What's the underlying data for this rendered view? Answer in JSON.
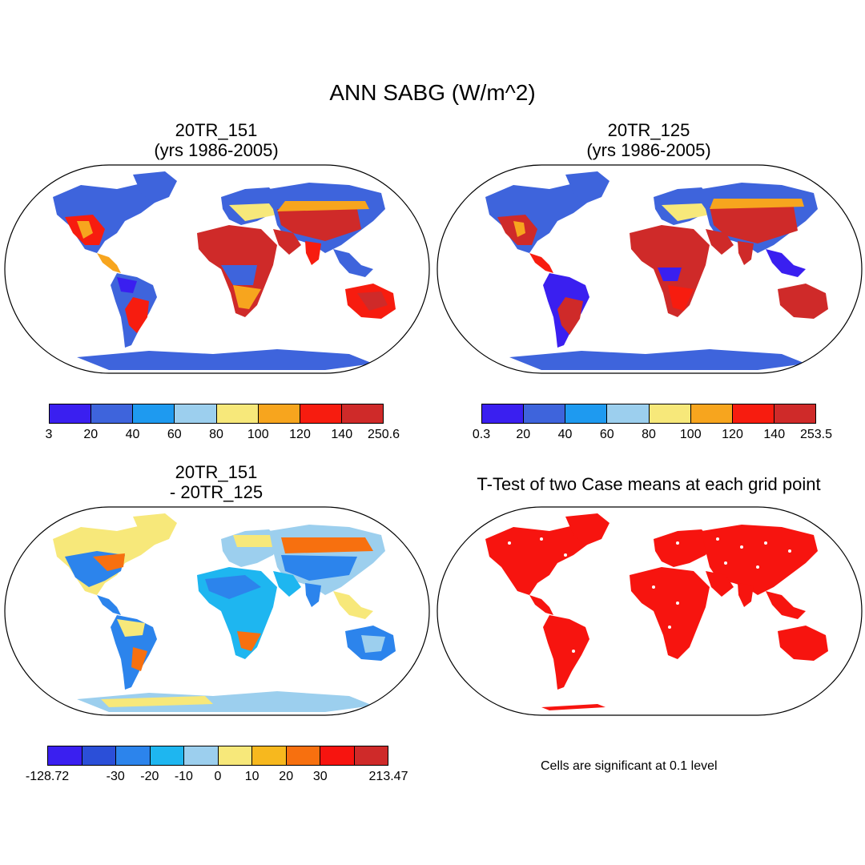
{
  "title": "ANN SABG (W/m^2)",
  "panels": {
    "top_left": {
      "title_line1": "20TR_151",
      "title_line2": "(yrs 1986-2005)",
      "colors": [
        "#3a1ff0",
        "#3e64dc",
        "#1e9af0",
        "#9ccfee",
        "#f7e87a",
        "#f7a51e",
        "#f71c0f",
        "#cf2a29"
      ],
      "ticks": [
        "3",
        "20",
        "40",
        "60",
        "80",
        "100",
        "120",
        "140",
        "250.6"
      ]
    },
    "top_right": {
      "title_line1": "20TR_125",
      "title_line2": "(yrs 1986-2005)",
      "colors": [
        "#3a1ff0",
        "#3e64dc",
        "#1e9af0",
        "#9ccfee",
        "#f7e87a",
        "#f7a51e",
        "#f71c0f",
        "#cf2a29"
      ],
      "ticks": [
        "0.3",
        "20",
        "40",
        "60",
        "80",
        "100",
        "120",
        "140",
        "253.5"
      ]
    },
    "bottom_left": {
      "title_line1": "20TR_151",
      "title_line2": "- 20TR_125",
      "colors": [
        "#3a1ff0",
        "#2b4fd8",
        "#2c84ec",
        "#1eb6f0",
        "#9ccfee",
        "#f7e87a",
        "#f7b81e",
        "#f7700f",
        "#f7140f",
        "#cf2a29"
      ],
      "ticks": [
        "-128.72",
        "",
        "-30",
        "-20",
        "-10",
        "0",
        "10",
        "20",
        "30",
        "",
        "213.47"
      ]
    },
    "bottom_right": {
      "title": "T-Test of two Case means at each grid point",
      "footnote": "Cells are significant at 0.1 level"
    }
  }
}
